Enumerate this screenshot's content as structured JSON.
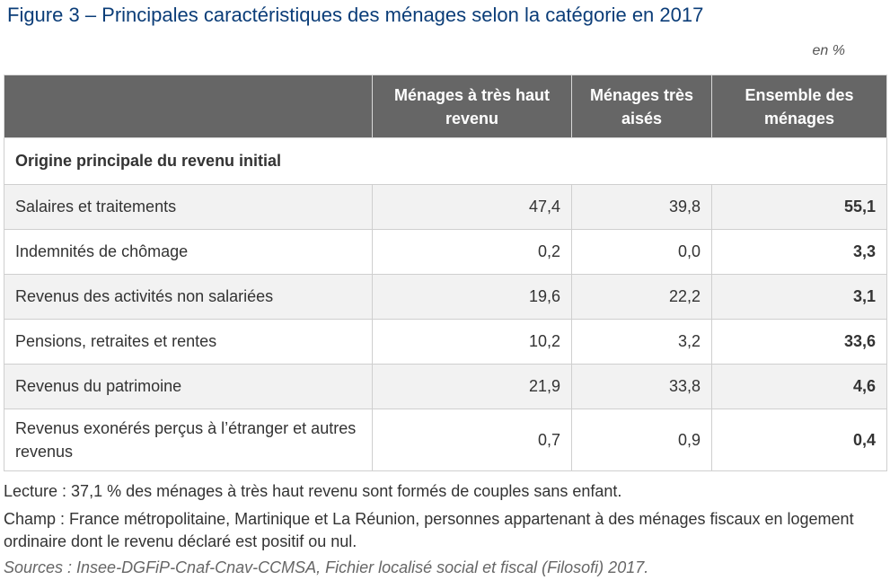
{
  "title": "Figure 3 – Principales caractéristiques des ménages selon la catégorie en 2017",
  "unit": "en %",
  "columns": [
    "Ménages à très haut revenu",
    "Ménages très aisés",
    "Ensemble des ménages"
  ],
  "section": "Origine principale du revenu initial",
  "rows": [
    {
      "label": "Salaires et traitements",
      "values": [
        "47,4",
        "39,8",
        "55,1"
      ]
    },
    {
      "label": "Indemnités de chômage",
      "values": [
        "0,2",
        "0,0",
        "3,3"
      ]
    },
    {
      "label": "Revenus des activités non salariées",
      "values": [
        "19,6",
        "22,2",
        "3,1"
      ]
    },
    {
      "label": "Pensions, retraites et rentes",
      "values": [
        "10,2",
        "3,2",
        "33,6"
      ]
    },
    {
      "label": "Revenus du patrimoine",
      "values": [
        "21,9",
        "33,8",
        "4,6"
      ]
    },
    {
      "label": "Revenus exonérés perçus à l’étranger et autres revenus",
      "values": [
        "0,7",
        "0,9",
        "0,4"
      ]
    }
  ],
  "notes": {
    "lecture": "Lecture : 37,1 % des ménages à très haut revenu sont formés de couples sans enfant.",
    "champ": "Champ : France métropolitaine, Martinique et La Réunion, personnes appartenant à des ménages fiscaux en logement ordinaire dont le revenu déclaré est positif ou nul.",
    "sources": "Sources : Insee-DGFiP-Cnaf-Cnav-CCMSA, Fichier localisé social et fiscal (Filosofi) 2017."
  },
  "colors": {
    "title": "#0b3d78",
    "header_bg": "#666666",
    "row_shade": "#f2f2f2"
  }
}
